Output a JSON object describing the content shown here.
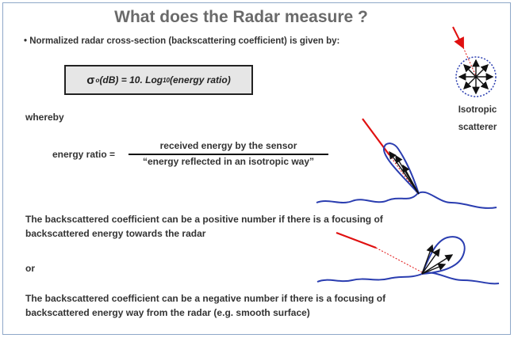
{
  "slide": {
    "title": "What does the Radar measure ?",
    "bullet": "• Normalized radar cross-section (backscattering coefficient) is given by:",
    "formula": {
      "sigma": "σ",
      "sigma_sub": "o",
      "lhs_rest": " (dB) = 10. Log",
      "log_sub": "10",
      "rhs": " (energy ratio)"
    },
    "whereby": "whereby",
    "energy_ratio": {
      "label": "energy ratio =",
      "numerator": "received energy by the sensor",
      "denominator": "“energy reflected in an isotropic way”"
    },
    "paragraph_positive_line1": "The backscattered coefficient can be a positive number if there is a focusing of",
    "paragraph_positive_line2": "backscattered energy towards the radar",
    "or": "or",
    "paragraph_negative_line1": "The backscattered coefficient can be a negative number if there is a focusing of",
    "paragraph_negative_line2": "backscattered energy way from the radar (e.g. smooth surface)",
    "isotropic_line1": "Isotropic",
    "isotropic_line2": "scatterer"
  },
  "colors": {
    "incident_ray": "#e01010",
    "surface": "#2a3db0",
    "lobe": "#2a3db0",
    "arrows": "#111111"
  },
  "icons": [
    "isotropic-scatterer-icon",
    "backscatter-lobe-diagram",
    "forward-scatter-lobe-diagram"
  ]
}
